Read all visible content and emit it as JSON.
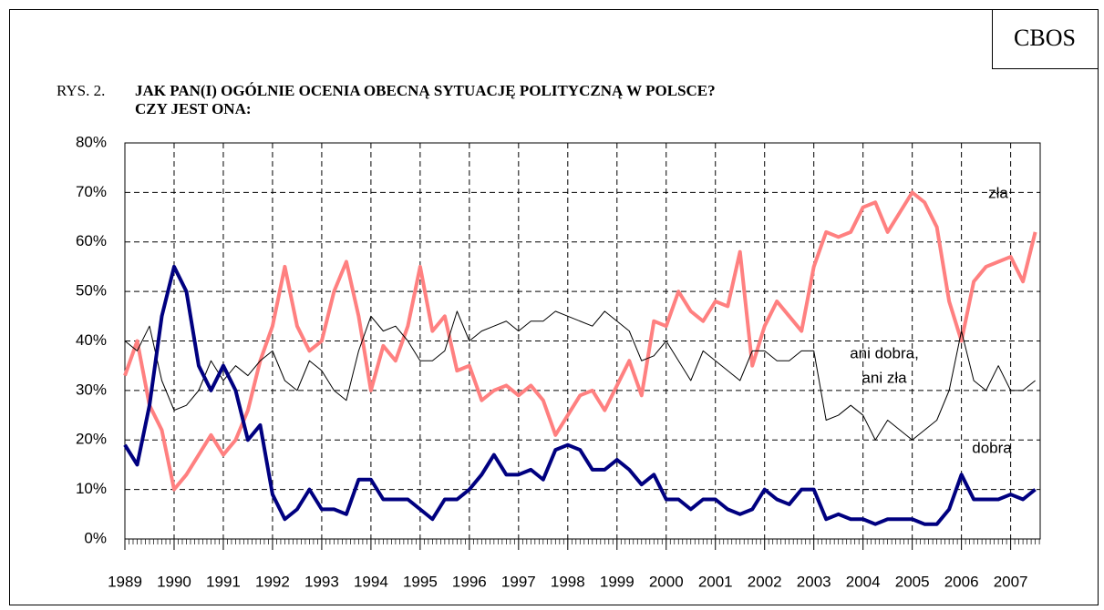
{
  "chart_data": {
    "type": "line",
    "source": "CBOS",
    "figure_label": "RYS. 2.",
    "title": [
      "JAK PAN(I) OGÓLNIE OCENIA OBECNĄ SYTUACJĘ POLITYCZNĄ W POLSCE?",
      "CZY JEST ONA:"
    ],
    "x": [
      1989,
      1989.25,
      1989.5,
      1989.75,
      1990,
      1990.25,
      1990.5,
      1990.75,
      1991,
      1991.25,
      1991.5,
      1991.75,
      1992,
      1992.25,
      1992.5,
      1992.75,
      1993,
      1993.25,
      1993.5,
      1993.75,
      1994,
      1994.25,
      1994.5,
      1994.75,
      1995,
      1995.25,
      1995.5,
      1995.75,
      1996,
      1996.25,
      1996.5,
      1996.75,
      1997,
      1997.25,
      1997.5,
      1997.75,
      1998,
      1998.25,
      1998.5,
      1998.75,
      1999,
      1999.25,
      1999.5,
      1999.75,
      2000,
      2000.25,
      2000.5,
      2000.75,
      2001,
      2001.25,
      2001.5,
      2001.75,
      2002,
      2002.25,
      2002.5,
      2002.75,
      2003,
      2003.25,
      2003.5,
      2003.75,
      2004,
      2004.25,
      2004.5,
      2004.75,
      2005,
      2005.25,
      2005.5,
      2005.75,
      2006,
      2006.25,
      2006.5,
      2006.75,
      2007,
      2007.25,
      2007.5
    ],
    "series": [
      {
        "name": "zła",
        "color": "#ff8080",
        "width": 4,
        "values": [
          33,
          40,
          27,
          22,
          10,
          13,
          17,
          21,
          17,
          20,
          26,
          36,
          43,
          55,
          43,
          38,
          40,
          50,
          56,
          45,
          30,
          39,
          36,
          43,
          55,
          42,
          45,
          34,
          35,
          28,
          30,
          31,
          29,
          31,
          28,
          21,
          25,
          29,
          30,
          26,
          31,
          36,
          29,
          44,
          43,
          50,
          46,
          44,
          48,
          47,
          58,
          35,
          43,
          48,
          45,
          42,
          55,
          62,
          61,
          62,
          67,
          68,
          62,
          66,
          70,
          68,
          63,
          48,
          40,
          52,
          55,
          56,
          57,
          52,
          62
        ]
      },
      {
        "name": "ani dobra, ani zła",
        "color": "#000000",
        "width": 1,
        "values": [
          40,
          38,
          43,
          32,
          26,
          27,
          30,
          36,
          32,
          35,
          33,
          36,
          38,
          32,
          30,
          36,
          34,
          30,
          28,
          38,
          45,
          42,
          43,
          40,
          36,
          36,
          38,
          46,
          40,
          42,
          43,
          44,
          42,
          44,
          44,
          46,
          45,
          44,
          43,
          46,
          44,
          42,
          36,
          37,
          40,
          36,
          32,
          38,
          36,
          34,
          32,
          38,
          38,
          36,
          36,
          38,
          38,
          24,
          25,
          27,
          25,
          20,
          24,
          22,
          20,
          22,
          24,
          30,
          42,
          32,
          30,
          35,
          30,
          30,
          32
        ]
      },
      {
        "name": "dobra",
        "color": "#000080",
        "width": 4,
        "values": [
          19,
          15,
          27,
          45,
          55,
          50,
          35,
          30,
          35,
          30,
          20,
          23,
          9,
          4,
          6,
          10,
          6,
          6,
          5,
          12,
          12,
          8,
          8,
          8,
          6,
          4,
          8,
          8,
          10,
          13,
          17,
          13,
          13,
          14,
          12,
          18,
          19,
          18,
          14,
          14,
          16,
          14,
          11,
          13,
          8,
          8,
          6,
          8,
          8,
          6,
          5,
          6,
          10,
          8,
          7,
          10,
          10,
          4,
          5,
          4,
          4,
          3,
          4,
          4,
          4,
          3,
          3,
          6,
          13,
          8,
          8,
          8,
          9,
          8,
          10
        ]
      }
    ],
    "annotations": [
      "zła",
      "ani dobra,",
      "ani zła",
      "dobra"
    ],
    "xlim": [
      1989,
      2007.6
    ],
    "xticks": [
      1989,
      1990,
      1991,
      1992,
      1993,
      1994,
      1995,
      1996,
      1997,
      1998,
      1999,
      2000,
      2001,
      2002,
      2003,
      2004,
      2005,
      2006,
      2007
    ],
    "ylim": [
      0,
      80
    ],
    "yticks": [
      {
        "value": 0,
        "label": "0%"
      },
      {
        "value": 10,
        "label": "10%"
      },
      {
        "value": 20,
        "label": "20%"
      },
      {
        "value": 30,
        "label": "30%"
      },
      {
        "value": 40,
        "label": "40%"
      },
      {
        "value": 50,
        "label": "50%"
      },
      {
        "value": 60,
        "label": "60%"
      },
      {
        "value": 70,
        "label": "70%"
      },
      {
        "value": 80,
        "label": "80%"
      }
    ],
    "grid": true
  }
}
